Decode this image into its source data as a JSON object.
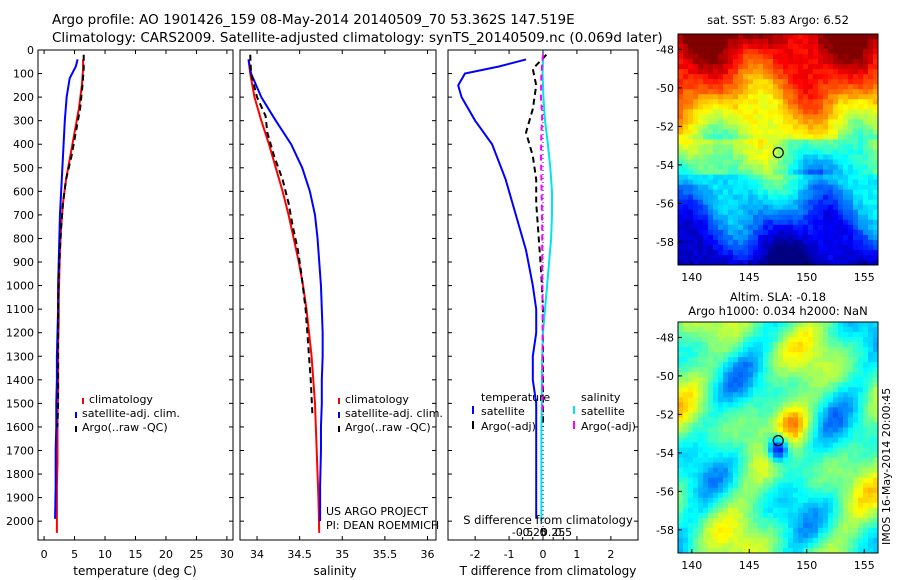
{
  "header": {
    "title_line1": "Argo profile: AO 1901426_159 08-May-2014 20140509_70 53.362S 147.519E",
    "title_line2": "Climatology: CARS2009. Satellite-adjusted climatology: synTS_20140509.nc (0.069d later)"
  },
  "colors": {
    "climatology": "#ff0000",
    "satellite": "#0000ff",
    "argo": "#000000",
    "sal_satellite": "#00e5e5",
    "sal_argo": "#ff00ff"
  },
  "panels": {
    "temperature": {
      "xlabel": "temperature (deg C)",
      "legend": [
        "climatology",
        "satellite-adj. clim.",
        "Argo(..raw -QC)"
      ]
    },
    "salinity": {
      "xlabel": "salinity",
      "legend": [
        "climatology",
        "satellite-adj. clim.",
        "Argo(..raw -QC)"
      ],
      "note1": "US ARGO PROJECT",
      "note2": "PI: DEAN ROEMMICH"
    },
    "difference": {
      "xlabel": "T difference from climatology",
      "top_label": "S difference from climatology",
      "legend_left_header": "temperature",
      "legend_right_header": "salinity",
      "legend_left": [
        "satellite",
        "Argo(-adj)"
      ],
      "legend_right": [
        "satellite",
        "Argo(-adj)"
      ]
    },
    "sst_map": {
      "title": "sat. SST: 5.83 Argo: 6.52"
    },
    "sla_map": {
      "title1": "Altim. SLA: -0.18",
      "title2": "Argo h1000: 0.034 h2000: NaN"
    }
  },
  "side_text": "IMOS 16-May-2014 20:00:45",
  "chart_data": [
    {
      "type": "line",
      "name": "temperature",
      "xlabel": "temperature (deg C)",
      "ylabel": "",
      "xlim": [
        -1,
        31
      ],
      "ylim": [
        2080,
        0
      ],
      "xticks": [
        0,
        5,
        10,
        15,
        20,
        25,
        30
      ],
      "yticks": [
        0,
        100,
        200,
        300,
        400,
        500,
        600,
        700,
        800,
        900,
        1000,
        1100,
        1200,
        1300,
        1400,
        1500,
        1600,
        1700,
        1800,
        1900,
        2000
      ],
      "series": [
        {
          "name": "climatology",
          "color": "#ff0000",
          "x": [
            6.4,
            6.4,
            6.2,
            5.7,
            5.0,
            4.3,
            3.6,
            3.1,
            2.8,
            2.6,
            2.5,
            2.4,
            2.4,
            2.3,
            2.3,
            2.3,
            2.2,
            2.2,
            2.2,
            2.1,
            2.1,
            2.1
          ],
          "y": [
            40,
            80,
            150,
            250,
            350,
            450,
            550,
            650,
            750,
            850,
            950,
            1050,
            1150,
            1250,
            1350,
            1450,
            1550,
            1650,
            1750,
            1850,
            1950,
            2050
          ]
        },
        {
          "name": "satellite-adj. clim.",
          "color": "#0000ff",
          "x": [
            5.5,
            5.2,
            4.2,
            3.7,
            3.4,
            3.2,
            3.0,
            2.8,
            2.6,
            2.5,
            2.4,
            2.3,
            2.3,
            2.2,
            2.1,
            2.1,
            2.0,
            2.0,
            1.9,
            1.9,
            1.8
          ],
          "y": [
            40,
            70,
            120,
            200,
            300,
            400,
            500,
            600,
            700,
            800,
            900,
            1000,
            1100,
            1200,
            1300,
            1400,
            1500,
            1600,
            1700,
            1850,
            1990
          ]
        },
        {
          "name": "Argo(..raw -QC)",
          "color": "#000000",
          "x": [
            6.5,
            6.5,
            6.3,
            5.9,
            5.2,
            4.5,
            3.6,
            3.1,
            2.8,
            2.6,
            2.4,
            2.3,
            2.3,
            2.3,
            2.2
          ],
          "y": [
            20,
            80,
            150,
            250,
            350,
            450,
            550,
            650,
            750,
            850,
            950,
            1100,
            1300,
            1500,
            1600
          ]
        }
      ]
    },
    {
      "type": "line",
      "name": "salinity",
      "xlabel": "salinity",
      "ylabel": "",
      "xlim": [
        33.8,
        36.1
      ],
      "ylim": [
        2080,
        0
      ],
      "xticks": [
        34,
        34.5,
        35,
        35.5,
        36
      ],
      "series": [
        {
          "name": "climatology",
          "color": "#ff0000",
          "x": [
            33.9,
            33.92,
            33.97,
            34.05,
            34.14,
            34.22,
            34.3,
            34.37,
            34.43,
            34.49,
            34.54,
            34.58,
            34.61,
            34.64,
            34.66,
            34.68,
            34.69,
            34.7,
            34.71,
            34.72,
            34.73
          ],
          "y": [
            40,
            100,
            200,
            300,
            400,
            500,
            600,
            700,
            800,
            900,
            1000,
            1100,
            1200,
            1300,
            1400,
            1500,
            1600,
            1700,
            1800,
            1900,
            2050
          ]
        },
        {
          "name": "satellite-adj. clim.",
          "color": "#0000ff",
          "x": [
            33.9,
            33.93,
            34.05,
            34.22,
            34.4,
            34.53,
            34.62,
            34.68,
            34.71,
            34.73,
            34.75,
            34.76,
            34.77,
            34.77,
            34.76,
            34.76,
            34.75,
            34.75,
            34.74,
            34.74
          ],
          "y": [
            40,
            100,
            200,
            300,
            400,
            500,
            600,
            700,
            800,
            900,
            1000,
            1100,
            1200,
            1300,
            1400,
            1500,
            1600,
            1700,
            1850,
            2000
          ]
        },
        {
          "name": "Argo(..raw -QC)",
          "color": "#000000",
          "x": [
            33.92,
            33.93,
            34.0,
            34.1,
            34.12,
            34.2,
            34.3,
            34.37,
            34.42,
            34.48,
            34.52,
            34.57,
            34.6,
            34.63,
            34.65
          ],
          "y": [
            20,
            100,
            200,
            280,
            350,
            450,
            550,
            650,
            750,
            850,
            950,
            1100,
            1250,
            1400,
            1550
          ]
        }
      ]
    },
    {
      "type": "line",
      "name": "difference",
      "xlabel": "T difference from climatology",
      "top_label": "S difference from climatology",
      "ylim": [
        2080,
        0
      ],
      "xlim": [
        -2.8,
        2.8
      ],
      "xticks": [
        -2,
        -1,
        0,
        1,
        2
      ],
      "top_xticks": [
        -0.5,
        -0.25,
        0,
        0.25,
        0.5
      ],
      "series": [
        {
          "name": "satellite (temperature)",
          "color": "#0000ff",
          "x": [
            -0.5,
            -1.3,
            -2.3,
            -2.5,
            -2.4,
            -2.0,
            -1.5,
            -1.1,
            -0.8,
            -0.5,
            -0.3,
            -0.2,
            -0.2,
            -0.3,
            -0.3,
            -0.2,
            -0.2,
            -0.2,
            -0.2,
            -0.2,
            -0.2
          ],
          "y": [
            40,
            70,
            100,
            150,
            200,
            300,
            400,
            550,
            700,
            850,
            1000,
            1100,
            1200,
            1300,
            1400,
            1500,
            1600,
            1700,
            1800,
            1900,
            1990
          ]
        },
        {
          "name": "Argo(-adj) (temperature)",
          "color": "#000000",
          "x": [
            0.1,
            -0.3,
            -0.2,
            -0.3,
            -0.5,
            -0.3,
            -0.2,
            -0.2,
            -0.15,
            -0.1,
            -0.05,
            0.0,
            0.0,
            0.0,
            0.0
          ],
          "y": [
            20,
            80,
            150,
            250,
            350,
            450,
            550,
            650,
            750,
            850,
            950,
            1100,
            1300,
            1500,
            1600
          ]
        },
        {
          "name": "satellite (salinity)",
          "color": "#00e5e5",
          "x": [
            0.0,
            -0.01,
            0.01,
            0.05,
            0.12,
            0.18,
            0.22,
            0.22,
            0.2,
            0.15,
            0.1,
            0.05,
            0.0,
            -0.02,
            -0.03,
            -0.03,
            -0.04,
            -0.04,
            -0.04,
            -0.04
          ],
          "y": [
            40,
            100,
            200,
            300,
            400,
            500,
            600,
            700,
            800,
            900,
            1000,
            1100,
            1200,
            1300,
            1400,
            1500,
            1600,
            1700,
            1850,
            2000
          ]
        },
        {
          "name": "Argo(-adj) (salinity)",
          "color": "#ff00ff",
          "x": [
            0.0,
            -0.04,
            -0.05,
            -0.02,
            -0.04,
            -0.05,
            -0.04,
            -0.03,
            -0.02,
            -0.02,
            -0.02,
            -0.01,
            -0.01,
            -0.01,
            -0.01
          ],
          "y": [
            20,
            100,
            200,
            280,
            350,
            450,
            550,
            650,
            750,
            850,
            950,
            1100,
            1250,
            1400,
            1550
          ]
        }
      ]
    },
    {
      "type": "heatmap",
      "name": "sst_map",
      "title": "sat. SST: 5.83 Argo: 6.52",
      "xlim": [
        138.8,
        156.2
      ],
      "ylim": [
        -59.2,
        -47.2
      ],
      "xticks": [
        140,
        145,
        150,
        155
      ],
      "yticks": [
        -48,
        -50,
        -52,
        -54,
        -56,
        -58
      ],
      "marker": {
        "lon": 147.519,
        "lat": -53.362
      }
    },
    {
      "type": "heatmap",
      "name": "sla_map",
      "title": "Altim. SLA: -0.18",
      "subtitle": "Argo h1000: 0.034 h2000: NaN",
      "xlim": [
        138.8,
        156.2
      ],
      "ylim": [
        -59.2,
        -47.2
      ],
      "xticks": [
        140,
        145,
        150,
        155
      ],
      "yticks": [
        -48,
        -50,
        -52,
        -54,
        -56,
        -58
      ],
      "marker": {
        "lon": 147.519,
        "lat": -53.362
      }
    }
  ]
}
